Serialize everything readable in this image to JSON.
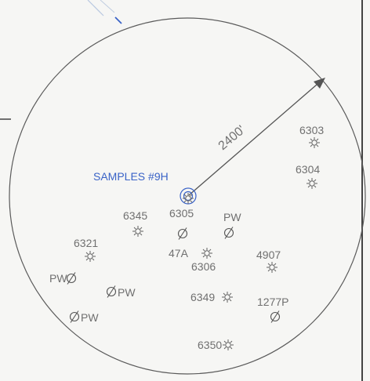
{
  "radius_label": "2400'",
  "sample_label": "SAMPLES #9H",
  "colors": {
    "line": "#555555",
    "text": "#707070",
    "sample": "#3a63c7",
    "background": "#f6f6f4"
  },
  "symbols": {
    "well": "sun-well-symbol",
    "plugged": "slashed-circle-symbol"
  },
  "wells": [
    {
      "id": "w-6303",
      "label": "6303"
    },
    {
      "id": "w-6304",
      "label": "6304"
    },
    {
      "id": "w-6345",
      "label": "6345"
    },
    {
      "id": "w-6305",
      "label": "6305"
    },
    {
      "id": "w-pw-a",
      "label": "PW"
    },
    {
      "id": "w-6321",
      "label": "6321"
    },
    {
      "id": "w-47a",
      "label": "47A"
    },
    {
      "id": "w-6306",
      "label": "6306"
    },
    {
      "id": "w-4907",
      "label": "4907"
    },
    {
      "id": "w-pw-b",
      "label": "PW"
    },
    {
      "id": "w-pw-c",
      "label": "PW"
    },
    {
      "id": "w-6349",
      "label": "6349"
    },
    {
      "id": "w-1277p",
      "label": "1277P"
    },
    {
      "id": "w-pw-d",
      "label": "PW"
    },
    {
      "id": "w-6350",
      "label": "6350"
    }
  ]
}
